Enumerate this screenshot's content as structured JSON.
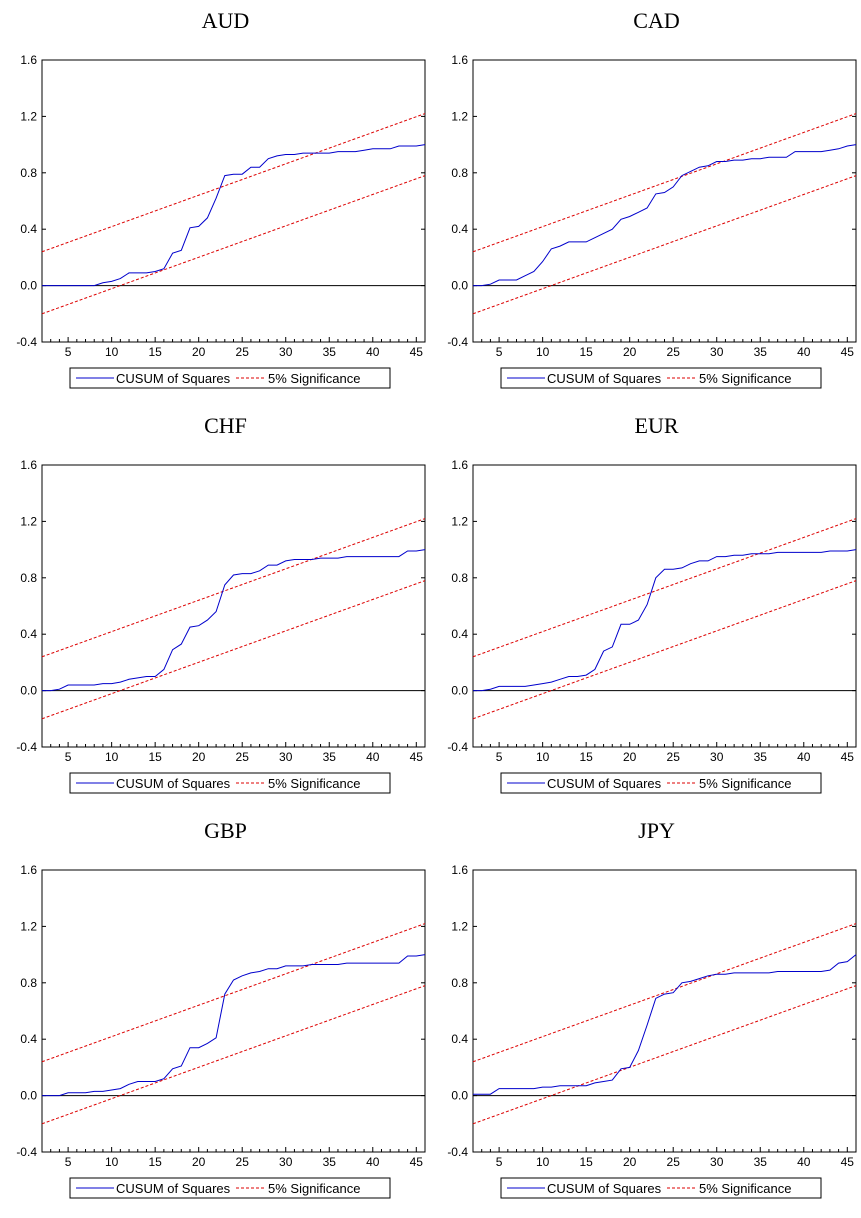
{
  "legend": {
    "items": [
      "CUSUM of Squares",
      "5% Significance"
    ],
    "colors": [
      "#0000cc",
      "#dd0000"
    ]
  },
  "chart_data": [
    {
      "type": "line",
      "title": "AUD",
      "xlim": [
        2,
        46
      ],
      "ylim": [
        -0.4,
        1.6
      ],
      "xticks": [
        5,
        10,
        15,
        20,
        25,
        30,
        35,
        40,
        45
      ],
      "yticks": [
        "-0.4",
        "0.0",
        "0.4",
        "0.8",
        "1.2",
        "1.6"
      ],
      "zero_line": 0,
      "series": [
        {
          "name": "CUSUM of Squares",
          "x": [
            2,
            3,
            4,
            5,
            6,
            7,
            8,
            9,
            10,
            11,
            12,
            13,
            14,
            15,
            16,
            17,
            18,
            19,
            20,
            21,
            22,
            23,
            24,
            25,
            26,
            27,
            28,
            29,
            30,
            31,
            32,
            33,
            34,
            35,
            36,
            37,
            38,
            39,
            40,
            41,
            42,
            43,
            44,
            45,
            46
          ],
          "y": [
            0,
            0,
            0,
            0,
            0,
            0,
            0,
            0.02,
            0.03,
            0.05,
            0.09,
            0.09,
            0.09,
            0.1,
            0.12,
            0.23,
            0.25,
            0.41,
            0.42,
            0.48,
            0.62,
            0.78,
            0.79,
            0.79,
            0.84,
            0.84,
            0.9,
            0.92,
            0.93,
            0.93,
            0.94,
            0.94,
            0.94,
            0.94,
            0.95,
            0.95,
            0.95,
            0.96,
            0.97,
            0.97,
            0.97,
            0.99,
            0.99,
            0.99,
            1.0
          ]
        },
        {
          "name": "5% Significance",
          "x": [
            2,
            46
          ],
          "y": [
            0.24,
            1.22
          ]
        },
        {
          "x": [
            2,
            46
          ],
          "y": [
            -0.2,
            0.78
          ]
        }
      ]
    },
    {
      "type": "line",
      "title": "CAD",
      "xlim": [
        2,
        46
      ],
      "ylim": [
        -0.4,
        1.6
      ],
      "xticks": [
        5,
        10,
        15,
        20,
        25,
        30,
        35,
        40,
        45
      ],
      "yticks": [
        "-0.4",
        "0.0",
        "0.4",
        "0.8",
        "1.2",
        "1.6"
      ],
      "zero_line": 0,
      "series": [
        {
          "name": "CUSUM of Squares",
          "x": [
            2,
            3,
            4,
            5,
            6,
            7,
            8,
            9,
            10,
            11,
            12,
            13,
            14,
            15,
            16,
            17,
            18,
            19,
            20,
            21,
            22,
            23,
            24,
            25,
            26,
            27,
            28,
            29,
            30,
            31,
            32,
            33,
            34,
            35,
            36,
            37,
            38,
            39,
            40,
            41,
            42,
            43,
            44,
            45,
            46
          ],
          "y": [
            0,
            0,
            0.01,
            0.04,
            0.04,
            0.04,
            0.07,
            0.1,
            0.17,
            0.26,
            0.28,
            0.31,
            0.31,
            0.31,
            0.34,
            0.37,
            0.4,
            0.47,
            0.49,
            0.52,
            0.55,
            0.65,
            0.66,
            0.7,
            0.78,
            0.81,
            0.84,
            0.85,
            0.88,
            0.88,
            0.89,
            0.89,
            0.9,
            0.9,
            0.91,
            0.91,
            0.91,
            0.95,
            0.95,
            0.95,
            0.95,
            0.96,
            0.97,
            0.99,
            1.0
          ]
        },
        {
          "name": "5% Significance",
          "x": [
            2,
            46
          ],
          "y": [
            0.24,
            1.22
          ]
        },
        {
          "x": [
            2,
            46
          ],
          "y": [
            -0.2,
            0.78
          ]
        }
      ]
    },
    {
      "type": "line",
      "title": "CHF",
      "xlim": [
        2,
        46
      ],
      "ylim": [
        -0.4,
        1.6
      ],
      "xticks": [
        5,
        10,
        15,
        20,
        25,
        30,
        35,
        40,
        45
      ],
      "yticks": [
        "-0.4",
        "0.0",
        "0.4",
        "0.8",
        "1.2",
        "1.6"
      ],
      "zero_line": 0,
      "series": [
        {
          "name": "CUSUM of Squares",
          "x": [
            2,
            3,
            4,
            5,
            6,
            7,
            8,
            9,
            10,
            11,
            12,
            13,
            14,
            15,
            16,
            17,
            18,
            19,
            20,
            21,
            22,
            23,
            24,
            25,
            26,
            27,
            28,
            29,
            30,
            31,
            32,
            33,
            34,
            35,
            36,
            37,
            38,
            39,
            40,
            41,
            42,
            43,
            44,
            45,
            46
          ],
          "y": [
            0,
            0,
            0.01,
            0.04,
            0.04,
            0.04,
            0.04,
            0.05,
            0.05,
            0.06,
            0.08,
            0.09,
            0.1,
            0.1,
            0.15,
            0.29,
            0.33,
            0.45,
            0.46,
            0.5,
            0.56,
            0.75,
            0.82,
            0.83,
            0.83,
            0.85,
            0.89,
            0.89,
            0.92,
            0.93,
            0.93,
            0.93,
            0.94,
            0.94,
            0.94,
            0.95,
            0.95,
            0.95,
            0.95,
            0.95,
            0.95,
            0.95,
            0.99,
            0.99,
            1.0
          ]
        },
        {
          "name": "5% Significance",
          "x": [
            2,
            46
          ],
          "y": [
            0.24,
            1.22
          ]
        },
        {
          "x": [
            2,
            46
          ],
          "y": [
            -0.2,
            0.78
          ]
        }
      ]
    },
    {
      "type": "line",
      "title": "EUR",
      "xlim": [
        2,
        46
      ],
      "ylim": [
        -0.4,
        1.6
      ],
      "xticks": [
        5,
        10,
        15,
        20,
        25,
        30,
        35,
        40,
        45
      ],
      "yticks": [
        "-0.4",
        "0.0",
        "0.4",
        "0.8",
        "1.2",
        "1.6"
      ],
      "zero_line": 0,
      "series": [
        {
          "name": "CUSUM of Squares",
          "x": [
            2,
            3,
            4,
            5,
            6,
            7,
            8,
            9,
            10,
            11,
            12,
            13,
            14,
            15,
            16,
            17,
            18,
            19,
            20,
            21,
            22,
            23,
            24,
            25,
            26,
            27,
            28,
            29,
            30,
            31,
            32,
            33,
            34,
            35,
            36,
            37,
            38,
            39,
            40,
            41,
            42,
            43,
            44,
            45,
            46
          ],
          "y": [
            0,
            0,
            0.01,
            0.03,
            0.03,
            0.03,
            0.03,
            0.04,
            0.05,
            0.06,
            0.08,
            0.1,
            0.1,
            0.11,
            0.15,
            0.28,
            0.31,
            0.47,
            0.47,
            0.5,
            0.61,
            0.8,
            0.86,
            0.86,
            0.87,
            0.9,
            0.92,
            0.92,
            0.95,
            0.95,
            0.96,
            0.96,
            0.97,
            0.97,
            0.97,
            0.98,
            0.98,
            0.98,
            0.98,
            0.98,
            0.98,
            0.99,
            0.99,
            0.99,
            1.0
          ]
        },
        {
          "name": "5% Significance",
          "x": [
            2,
            46
          ],
          "y": [
            0.24,
            1.22
          ]
        },
        {
          "x": [
            2,
            46
          ],
          "y": [
            -0.2,
            0.78
          ]
        }
      ]
    },
    {
      "type": "line",
      "title": "GBP",
      "xlim": [
        2,
        46
      ],
      "ylim": [
        -0.4,
        1.6
      ],
      "xticks": [
        5,
        10,
        15,
        20,
        25,
        30,
        35,
        40,
        45
      ],
      "yticks": [
        "-0.4",
        "0.0",
        "0.4",
        "0.8",
        "1.2",
        "1.6"
      ],
      "zero_line": 0,
      "series": [
        {
          "name": "CUSUM of Squares",
          "x": [
            2,
            3,
            4,
            5,
            6,
            7,
            8,
            9,
            10,
            11,
            12,
            13,
            14,
            15,
            16,
            17,
            18,
            19,
            20,
            21,
            22,
            23,
            24,
            25,
            26,
            27,
            28,
            29,
            30,
            31,
            32,
            33,
            34,
            35,
            36,
            37,
            38,
            39,
            40,
            41,
            42,
            43,
            44,
            45,
            46
          ],
          "y": [
            0,
            0,
            0,
            0.02,
            0.02,
            0.02,
            0.03,
            0.03,
            0.04,
            0.05,
            0.08,
            0.1,
            0.1,
            0.1,
            0.12,
            0.19,
            0.21,
            0.34,
            0.34,
            0.37,
            0.41,
            0.72,
            0.82,
            0.85,
            0.87,
            0.88,
            0.9,
            0.9,
            0.92,
            0.92,
            0.92,
            0.93,
            0.93,
            0.93,
            0.93,
            0.94,
            0.94,
            0.94,
            0.94,
            0.94,
            0.94,
            0.94,
            0.99,
            0.99,
            1.0
          ]
        },
        {
          "name": "5% Significance",
          "x": [
            2,
            46
          ],
          "y": [
            0.24,
            1.22
          ]
        },
        {
          "x": [
            2,
            46
          ],
          "y": [
            -0.2,
            0.78
          ]
        }
      ]
    },
    {
      "type": "line",
      "title": "JPY",
      "xlim": [
        2,
        46
      ],
      "ylim": [
        -0.4,
        1.6
      ],
      "xticks": [
        5,
        10,
        15,
        20,
        25,
        30,
        35,
        40,
        45
      ],
      "yticks": [
        "-0.4",
        "0.0",
        "0.4",
        "0.8",
        "1.2",
        "1.6"
      ],
      "zero_line": 0,
      "series": [
        {
          "name": "CUSUM of Squares",
          "x": [
            2,
            3,
            4,
            5,
            6,
            7,
            8,
            9,
            10,
            11,
            12,
            13,
            14,
            15,
            16,
            17,
            18,
            19,
            20,
            21,
            22,
            23,
            24,
            25,
            26,
            27,
            28,
            29,
            30,
            31,
            32,
            33,
            34,
            35,
            36,
            37,
            38,
            39,
            40,
            41,
            42,
            43,
            44,
            45,
            46
          ],
          "y": [
            0.01,
            0.01,
            0.01,
            0.05,
            0.05,
            0.05,
            0.05,
            0.05,
            0.06,
            0.06,
            0.07,
            0.07,
            0.07,
            0.07,
            0.09,
            0.1,
            0.11,
            0.19,
            0.2,
            0.32,
            0.5,
            0.69,
            0.72,
            0.73,
            0.8,
            0.81,
            0.83,
            0.85,
            0.86,
            0.86,
            0.87,
            0.87,
            0.87,
            0.87,
            0.87,
            0.88,
            0.88,
            0.88,
            0.88,
            0.88,
            0.88,
            0.89,
            0.94,
            0.95,
            1.0
          ]
        },
        {
          "name": "5% Significance",
          "x": [
            2,
            46
          ],
          "y": [
            0.24,
            1.22
          ]
        },
        {
          "x": [
            2,
            46
          ],
          "y": [
            -0.2,
            0.78
          ]
        }
      ]
    }
  ]
}
